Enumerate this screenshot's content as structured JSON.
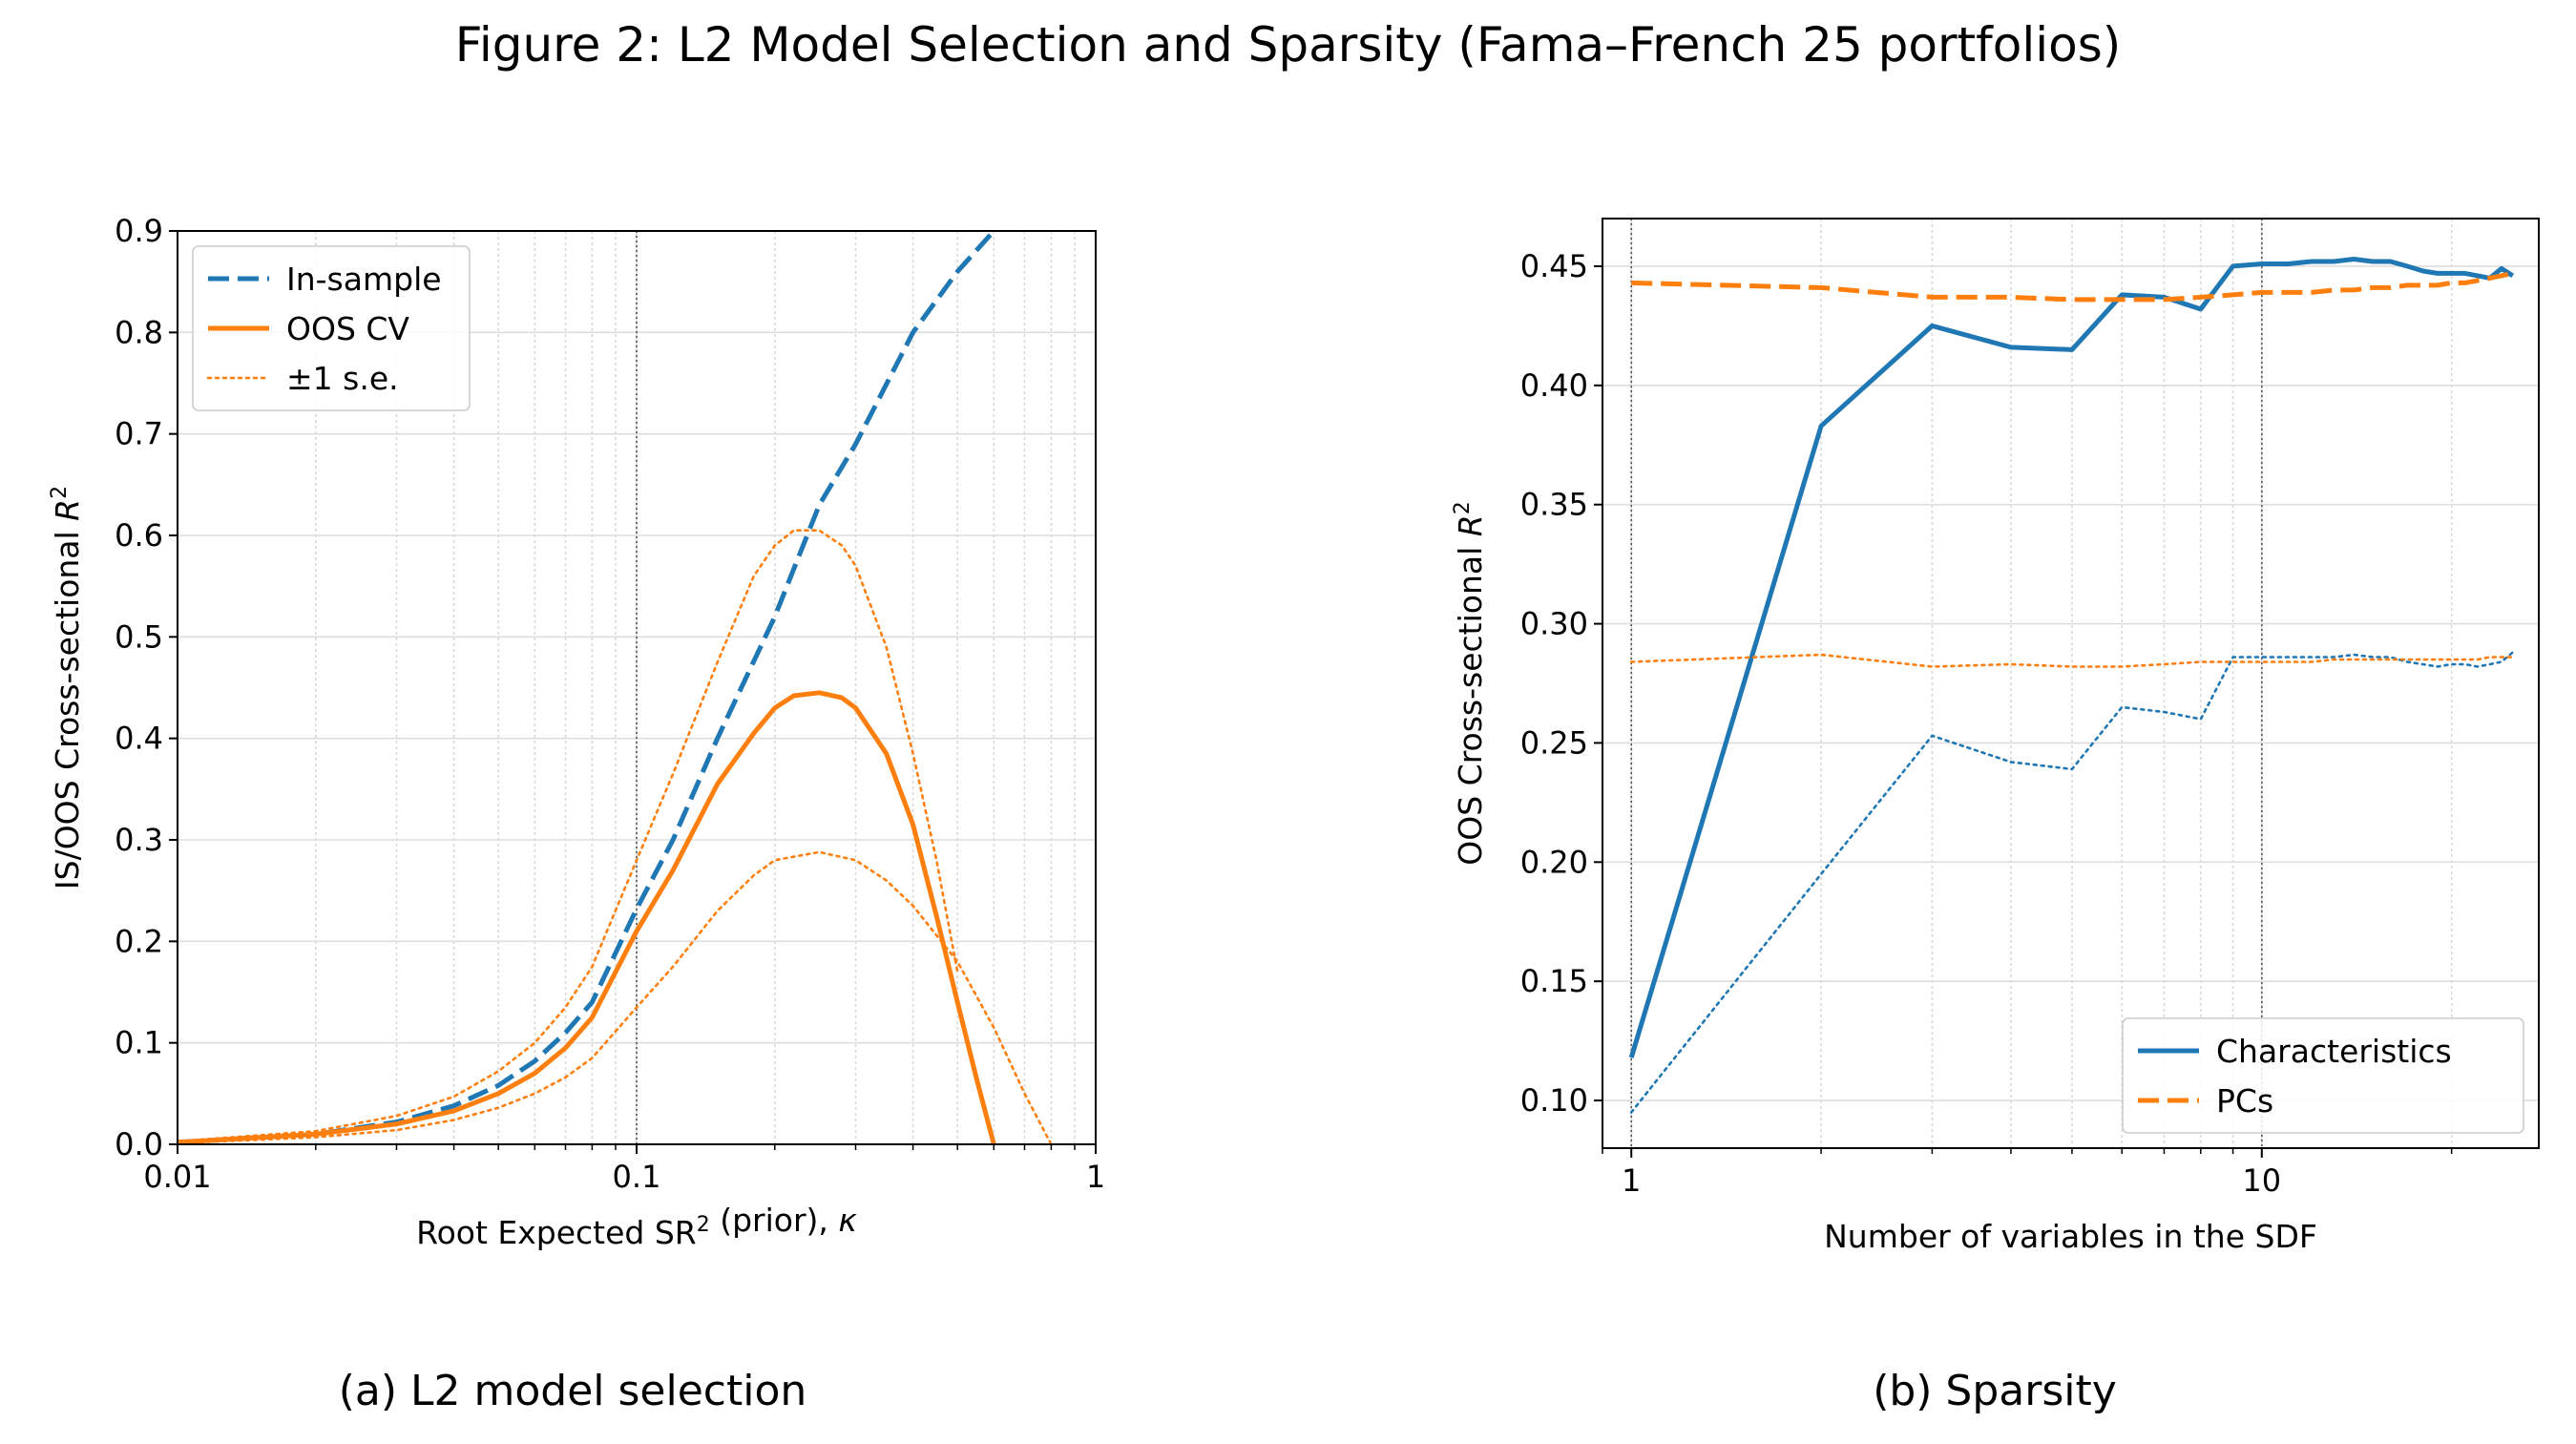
{
  "figure": {
    "title": "Figure 2: L2 Model Selection and Sparsity (Fama–French 25 portfolios)",
    "caption_a": "(a) L2 model selection",
    "caption_b": "(b) Sparsity"
  },
  "chart_data": [
    {
      "type": "line",
      "panel": "(a) L2 model selection",
      "xlabel": "Root Expected SR² (prior), κ",
      "ylabel": "IS/OOS Cross-sectional R²",
      "xscale": "log",
      "xlim": [
        0.01,
        1
      ],
      "ylim": [
        0.0,
        0.9
      ],
      "xticks": [
        {
          "v": 0.01,
          "label": "0.01"
        },
        {
          "v": 0.1,
          "label": "0.1"
        },
        {
          "v": 1,
          "label": "1"
        }
      ],
      "yticks": [
        0.0,
        0.1,
        0.2,
        0.3,
        0.4,
        0.5,
        0.6,
        0.7,
        0.8,
        0.9
      ],
      "ytick_labels": [
        "0.0",
        "0.1",
        "0.2",
        "0.3",
        "0.4",
        "0.5",
        "0.6",
        "0.7",
        "0.8",
        "0.9"
      ],
      "grid": true,
      "vline": 0.1,
      "legend_position": "upper-left",
      "legend": [
        {
          "label": "In-sample",
          "color": "#1f77b4",
          "style": "dashed"
        },
        {
          "label": "OOS CV",
          "color": "#ff7f0e",
          "style": "solid"
        },
        {
          "label": "±1 s.e.",
          "color": "#ff7f0e",
          "style": "dotted"
        }
      ],
      "series": [
        {
          "name": "In-sample",
          "color": "#1f77b4",
          "style": "dashed",
          "x": [
            0.01,
            0.02,
            0.03,
            0.04,
            0.05,
            0.06,
            0.07,
            0.08,
            0.1,
            0.12,
            0.15,
            0.2,
            0.25,
            0.3,
            0.4,
            0.5,
            0.6
          ],
          "y": [
            0.002,
            0.01,
            0.022,
            0.038,
            0.058,
            0.082,
            0.11,
            0.14,
            0.232,
            0.3,
            0.4,
            0.52,
            0.63,
            0.69,
            0.8,
            0.86,
            0.9
          ]
        },
        {
          "name": "OOS CV",
          "color": "#ff7f0e",
          "style": "solid",
          "x": [
            0.01,
            0.02,
            0.03,
            0.04,
            0.05,
            0.06,
            0.07,
            0.08,
            0.1,
            0.12,
            0.15,
            0.18,
            0.2,
            0.22,
            0.25,
            0.28,
            0.3,
            0.35,
            0.4,
            0.45,
            0.5,
            0.55,
            0.6
          ],
          "y": [
            0.002,
            0.01,
            0.02,
            0.033,
            0.05,
            0.07,
            0.095,
            0.125,
            0.21,
            0.27,
            0.355,
            0.405,
            0.43,
            0.442,
            0.445,
            0.44,
            0.43,
            0.385,
            0.315,
            0.225,
            0.14,
            0.065,
            0.0
          ]
        },
        {
          "name": "±1 s.e. upper",
          "color": "#ff7f0e",
          "style": "dotted",
          "x": [
            0.01,
            0.02,
            0.03,
            0.04,
            0.05,
            0.06,
            0.07,
            0.08,
            0.1,
            0.12,
            0.15,
            0.18,
            0.2,
            0.22,
            0.25,
            0.28,
            0.3,
            0.35,
            0.4,
            0.45,
            0.5
          ],
          "y": [
            0.003,
            0.013,
            0.028,
            0.047,
            0.072,
            0.1,
            0.135,
            0.175,
            0.28,
            0.365,
            0.475,
            0.56,
            0.59,
            0.605,
            0.605,
            0.59,
            0.57,
            0.49,
            0.385,
            0.28,
            0.17
          ]
        },
        {
          "name": "±1 s.e. lower",
          "color": "#ff7f0e",
          "style": "dotted",
          "x": [
            0.01,
            0.02,
            0.03,
            0.04,
            0.05,
            0.06,
            0.07,
            0.08,
            0.1,
            0.12,
            0.15,
            0.18,
            0.2,
            0.25,
            0.3,
            0.35,
            0.4,
            0.5,
            0.6,
            0.7,
            0.8
          ],
          "y": [
            0.001,
            0.007,
            0.014,
            0.024,
            0.036,
            0.05,
            0.066,
            0.085,
            0.135,
            0.175,
            0.23,
            0.265,
            0.28,
            0.288,
            0.28,
            0.26,
            0.235,
            0.18,
            0.115,
            0.05,
            0.0
          ]
        }
      ]
    },
    {
      "type": "line",
      "panel": "(b) Sparsity",
      "xlabel": "Number of variables in the SDF",
      "ylabel": "OOS Cross-sectional R²",
      "xscale": "log",
      "xlim": [
        0.9,
        27.5
      ],
      "ylim": [
        0.08,
        0.47
      ],
      "xticks": [
        {
          "v": 1,
          "label": "1"
        },
        {
          "v": 10,
          "label": "10"
        }
      ],
      "yticks": [
        0.1,
        0.15,
        0.2,
        0.25,
        0.3,
        0.35,
        0.4,
        0.45
      ],
      "ytick_labels": [
        "0.10",
        "0.15",
        "0.20",
        "0.25",
        "0.30",
        "0.35",
        "0.40",
        "0.45"
      ],
      "grid": true,
      "vlines": [
        1,
        10
      ],
      "legend_position": "lower-right",
      "legend": [
        {
          "label": "Characteristics",
          "color": "#1f77b4",
          "style": "solid"
        },
        {
          "label": "PCs",
          "color": "#ff7f0e",
          "style": "dashed"
        }
      ],
      "series": [
        {
          "name": "Characteristics",
          "color": "#1f77b4",
          "style": "solid",
          "x": [
            1,
            2,
            3,
            4,
            5,
            6,
            7,
            8,
            9,
            10,
            11,
            12,
            13,
            14,
            15,
            16,
            17,
            18,
            19,
            20,
            21,
            22,
            23,
            24,
            25
          ],
          "y": [
            0.118,
            0.383,
            0.425,
            0.416,
            0.415,
            0.438,
            0.437,
            0.432,
            0.45,
            0.451,
            0.451,
            0.452,
            0.452,
            0.453,
            0.452,
            0.452,
            0.45,
            0.448,
            0.447,
            0.447,
            0.447,
            0.446,
            0.445,
            0.449,
            0.446
          ]
        },
        {
          "name": "PCs",
          "color": "#ff7f0e",
          "style": "dashed",
          "x": [
            1,
            2,
            3,
            4,
            5,
            6,
            7,
            8,
            9,
            10,
            11,
            12,
            13,
            14,
            15,
            16,
            17,
            18,
            19,
            20,
            21,
            22,
            23,
            24,
            25
          ],
          "y": [
            0.443,
            0.441,
            0.437,
            0.437,
            0.436,
            0.436,
            0.436,
            0.437,
            0.438,
            0.439,
            0.439,
            0.439,
            0.44,
            0.44,
            0.441,
            0.441,
            0.442,
            0.442,
            0.442,
            0.443,
            0.443,
            0.444,
            0.445,
            0.446,
            0.447
          ]
        },
        {
          "name": "Characteristics s.e.",
          "color": "#1f77b4",
          "style": "dotted",
          "x": [
            1,
            2,
            3,
            4,
            5,
            6,
            7,
            8,
            9,
            10,
            11,
            12,
            13,
            14,
            15,
            16,
            17,
            18,
            19,
            20,
            21,
            22,
            23,
            24,
            25
          ],
          "y": [
            0.095,
            0.195,
            0.253,
            0.242,
            0.239,
            0.265,
            0.263,
            0.26,
            0.286,
            0.286,
            0.286,
            0.286,
            0.286,
            0.287,
            0.286,
            0.286,
            0.284,
            0.283,
            0.282,
            0.283,
            0.283,
            0.282,
            0.283,
            0.284,
            0.288
          ]
        },
        {
          "name": "PCs s.e.",
          "color": "#ff7f0e",
          "style": "dotted",
          "x": [
            1,
            2,
            3,
            4,
            5,
            6,
            7,
            8,
            9,
            10,
            11,
            12,
            13,
            14,
            15,
            16,
            17,
            18,
            19,
            20,
            21,
            22,
            23,
            24,
            25
          ],
          "y": [
            0.284,
            0.287,
            0.282,
            0.283,
            0.282,
            0.282,
            0.283,
            0.284,
            0.284,
            0.284,
            0.284,
            0.284,
            0.285,
            0.285,
            0.285,
            0.285,
            0.285,
            0.285,
            0.285,
            0.285,
            0.285,
            0.285,
            0.286,
            0.286,
            0.286
          ]
        }
      ]
    }
  ]
}
